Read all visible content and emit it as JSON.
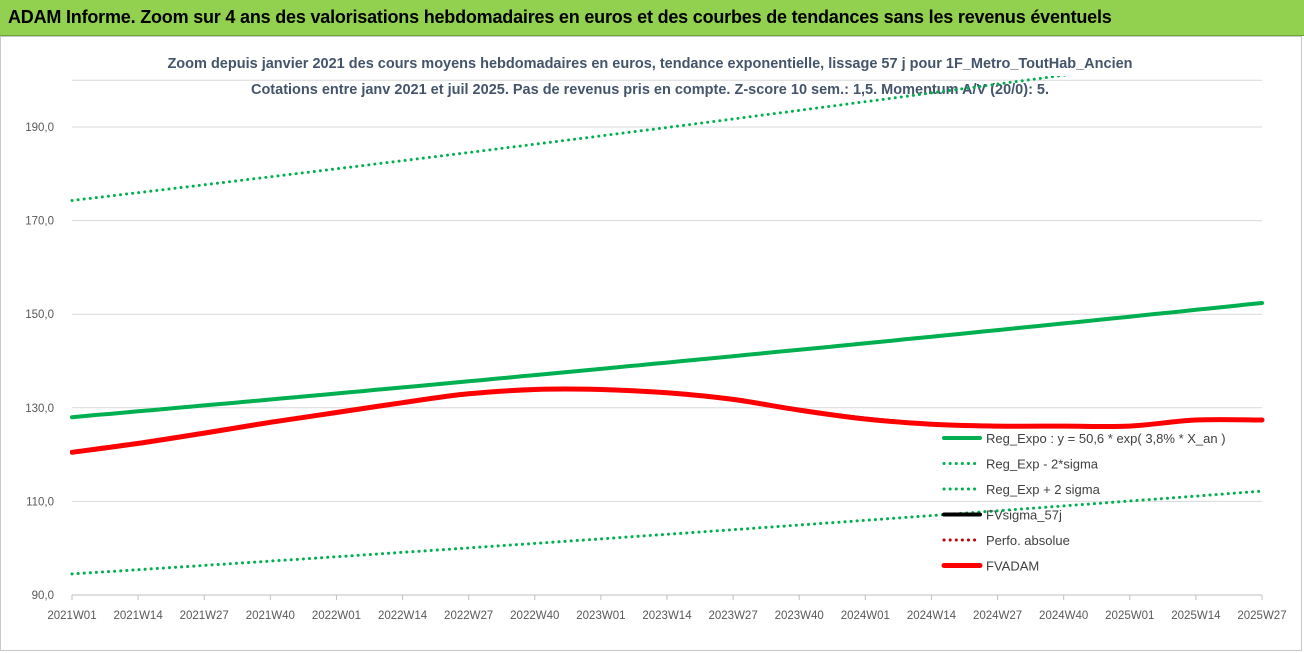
{
  "header": {
    "banner_title": "ADAM Informe. Zoom sur 4 ans des valorisations hebdomadaires en euros et des courbes de tendances sans les revenus éventuels"
  },
  "colors": {
    "banner_bg": "#92d050",
    "trend_green": "#00b050",
    "fvadam_red": "#ff0000",
    "fvsigma_black": "#000000",
    "perfo_red": "#c00000"
  },
  "chart_data": {
    "type": "line",
    "title": "Zoom depuis janvier 2021 des cours moyens hebdomadaires en euros, tendance exponentielle, lissage 57 j pour 1F_Metro_ToutHab_Ancien",
    "subtitle": "Cotations entre janv 2021 et juil 2025. Pas de revenus pris en compte. Z-score 10 sem.: 1,5. Momentum A/V (20/0): 5.",
    "xlabel": "",
    "ylabel": "",
    "x_ticks": [
      "2021W01",
      "2021W14",
      "2021W27",
      "2021W40",
      "2022W01",
      "2022W14",
      "2022W27",
      "2022W40",
      "2023W01",
      "2023W14",
      "2023W27",
      "2023W40",
      "2024W01",
      "2024W14",
      "2024W27",
      "2024W40",
      "2025W01",
      "2025W14",
      "2025W27"
    ],
    "y_ticks": [
      "90,0",
      "110,0",
      "130,0",
      "150,0",
      "170,0",
      "190,0"
    ],
    "ylim": [
      90,
      200
    ],
    "grid": "horizontal",
    "legend_position": "bottom-right",
    "series": [
      {
        "name": "Reg_Expo : y = 50,6 * exp( 3,8% *  X_an )",
        "style": "solid",
        "color": "#00b050",
        "x": [
          0,
          4.5
        ],
        "y": [
          128.0,
          152.4
        ],
        "curve": "exponential"
      },
      {
        "name": "Reg_Exp - 2*sigma",
        "style": "dotted",
        "color": "#00b050",
        "x": [
          0,
          4.5
        ],
        "y": [
          94.5,
          112.2
        ],
        "curve": "exponential"
      },
      {
        "name": "Reg_Exp + 2 sigma",
        "style": "dotted",
        "color": "#00b050",
        "x": [
          0,
          4.5
        ],
        "y": [
          174.3,
          206.9
        ],
        "curve": "exponential"
      },
      {
        "name": "FVsigma_57j",
        "style": "solid",
        "color": "#000000",
        "x": [
          0,
          0.25,
          0.5,
          0.75,
          1.0,
          1.25,
          1.5,
          1.75,
          2.0,
          2.25,
          2.5,
          2.75,
          3.0,
          3.25,
          3.5,
          3.75,
          4.0,
          4.25,
          4.5
        ],
        "y": [
          120.5,
          122.4,
          124.6,
          126.9,
          129.0,
          131.1,
          133.0,
          133.9,
          133.9,
          133.2,
          131.8,
          129.5,
          127.7,
          126.5,
          126.1,
          126.1,
          126.1,
          127.4,
          127.4
        ]
      },
      {
        "name": "Perfo. absolue",
        "style": "dotted",
        "color": "#c00000",
        "x": [],
        "y": []
      },
      {
        "name": "FVADAM",
        "style": "solid",
        "color": "#ff0000",
        "x": [
          0,
          0.25,
          0.5,
          0.75,
          1.0,
          1.25,
          1.5,
          1.75,
          2.0,
          2.25,
          2.5,
          2.75,
          3.0,
          3.25,
          3.5,
          3.75,
          4.0,
          4.25,
          4.5
        ],
        "y": [
          120.5,
          122.4,
          124.6,
          126.9,
          129.0,
          131.1,
          133.0,
          133.9,
          133.9,
          133.2,
          131.8,
          129.5,
          127.6,
          126.5,
          126.1,
          126.1,
          126.1,
          127.4,
          127.4
        ]
      }
    ]
  }
}
